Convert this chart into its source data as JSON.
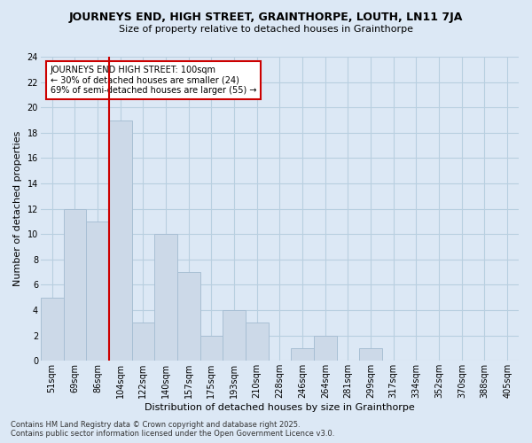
{
  "title": "JOURNEYS END, HIGH STREET, GRAINTHORPE, LOUTH, LN11 7JA",
  "subtitle": "Size of property relative to detached houses in Grainthorpe",
  "xlabel": "Distribution of detached houses by size in Grainthorpe",
  "ylabel": "Number of detached properties",
  "footnote": "Contains HM Land Registry data © Crown copyright and database right 2025.\nContains public sector information licensed under the Open Government Licence v3.0.",
  "bar_color": "#ccd9e8",
  "bar_edge_color": "#a8bfd4",
  "background_color": "#dce8f5",
  "plot_bg_color": "#dce8f5",
  "grid_color": "#b8cfe0",
  "vline_color": "#cc0000",
  "vline_x_index": 3,
  "categories": [
    "51sqm",
    "69sqm",
    "86sqm",
    "104sqm",
    "122sqm",
    "140sqm",
    "157sqm",
    "175sqm",
    "193sqm",
    "210sqm",
    "228sqm",
    "246sqm",
    "264sqm",
    "281sqm",
    "299sqm",
    "317sqm",
    "334sqm",
    "352sqm",
    "370sqm",
    "388sqm",
    "405sqm"
  ],
  "values": [
    5,
    12,
    11,
    19,
    3,
    10,
    7,
    2,
    4,
    3,
    0,
    1,
    2,
    0,
    1,
    0,
    0,
    0,
    0,
    0,
    0
  ],
  "ylim": [
    0,
    24
  ],
  "yticks": [
    0,
    2,
    4,
    6,
    8,
    10,
    12,
    14,
    16,
    18,
    20,
    22,
    24
  ],
  "annotation_title": "JOURNEYS END HIGH STREET: 100sqm",
  "annotation_line1": "← 30% of detached houses are smaller (24)",
  "annotation_line2": "69% of semi-detached houses are larger (55) →",
  "annotation_box_color": "#ffffff",
  "annotation_box_edge": "#cc0000",
  "title_fontsize": 9,
  "subtitle_fontsize": 8,
  "tick_fontsize": 7,
  "ylabel_fontsize": 8,
  "xlabel_fontsize": 8,
  "annotation_fontsize": 7,
  "footnote_fontsize": 6
}
